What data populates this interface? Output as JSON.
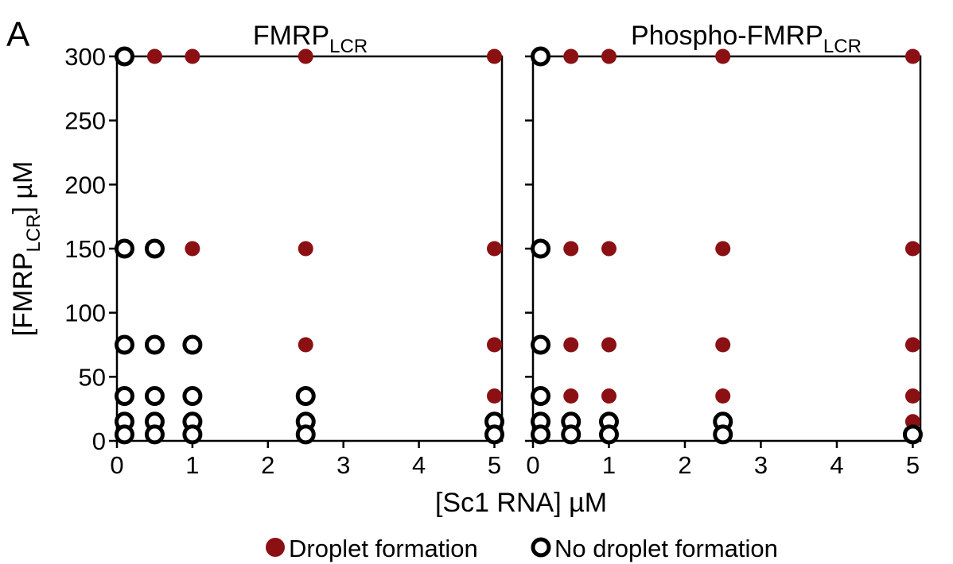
{
  "panel_label": "A",
  "legend": {
    "filled_label": "Droplet formation",
    "open_label": "No droplet formation"
  },
  "colors": {
    "droplet": "#8b1014",
    "no_droplet": "#000000",
    "axes": "#000000"
  },
  "chart_data": [
    {
      "type": "scatter",
      "title": "FMRP",
      "title_subscript": "LCR",
      "xlabel": "[Sc1 RNA] µM",
      "ylabel": "[FMRP",
      "ylabel_subscript": "LCR",
      "ylabel_suffix": "] µM",
      "xlim": [
        0,
        5.1
      ],
      "ylim": [
        0,
        300
      ],
      "xticks": [
        0,
        1,
        2,
        3,
        4,
        5
      ],
      "yticks": [
        0,
        50,
        100,
        150,
        200,
        250,
        300
      ],
      "grid": false,
      "series": [
        {
          "name": "Droplet formation",
          "marker": "filled",
          "points": [
            [
              0.5,
              300
            ],
            [
              1,
              300
            ],
            [
              2.5,
              300
            ],
            [
              5,
              300
            ],
            [
              1,
              150
            ],
            [
              2.5,
              150
            ],
            [
              5,
              150
            ],
            [
              2.5,
              75
            ],
            [
              5,
              75
            ],
            [
              5,
              35
            ]
          ]
        },
        {
          "name": "No droplet formation",
          "marker": "open",
          "points": [
            [
              0.1,
              300
            ],
            [
              0.1,
              150
            ],
            [
              0.5,
              150
            ],
            [
              0.1,
              75
            ],
            [
              0.5,
              75
            ],
            [
              1,
              75
            ],
            [
              0.1,
              35
            ],
            [
              0.5,
              35
            ],
            [
              1,
              35
            ],
            [
              2.5,
              35
            ],
            [
              0.1,
              15
            ],
            [
              0.5,
              15
            ],
            [
              1,
              15
            ],
            [
              2.5,
              15
            ],
            [
              5,
              15
            ],
            [
              0.1,
              5
            ],
            [
              0.5,
              5
            ],
            [
              1,
              5
            ],
            [
              2.5,
              5
            ],
            [
              5,
              5
            ]
          ]
        }
      ]
    },
    {
      "type": "scatter",
      "title": "Phospho-FMRP",
      "title_subscript": "LCR",
      "xlabel": "[Sc1 RNA] µM",
      "xlim": [
        0,
        5.1
      ],
      "ylim": [
        0,
        300
      ],
      "xticks": [
        0,
        1,
        2,
        3,
        4,
        5
      ],
      "yticks": [
        0,
        50,
        100,
        150,
        200,
        250,
        300
      ],
      "grid": false,
      "series": [
        {
          "name": "Droplet formation",
          "marker": "filled",
          "points": [
            [
              0.5,
              300
            ],
            [
              1,
              300
            ],
            [
              2.5,
              300
            ],
            [
              5,
              300
            ],
            [
              0.5,
              150
            ],
            [
              1,
              150
            ],
            [
              2.5,
              150
            ],
            [
              5,
              150
            ],
            [
              0.5,
              75
            ],
            [
              1,
              75
            ],
            [
              2.5,
              75
            ],
            [
              5,
              75
            ],
            [
              0.5,
              35
            ],
            [
              1,
              35
            ],
            [
              2.5,
              35
            ],
            [
              5,
              35
            ],
            [
              5,
              15
            ]
          ]
        },
        {
          "name": "No droplet formation",
          "marker": "open",
          "points": [
            [
              0.1,
              300
            ],
            [
              0.1,
              150
            ],
            [
              0.1,
              75
            ],
            [
              0.1,
              35
            ],
            [
              0.1,
              15
            ],
            [
              0.5,
              15
            ],
            [
              1,
              15
            ],
            [
              2.5,
              15
            ],
            [
              0.1,
              5
            ],
            [
              0.5,
              5
            ],
            [
              1,
              5
            ],
            [
              2.5,
              5
            ],
            [
              5,
              5
            ]
          ]
        }
      ]
    }
  ]
}
